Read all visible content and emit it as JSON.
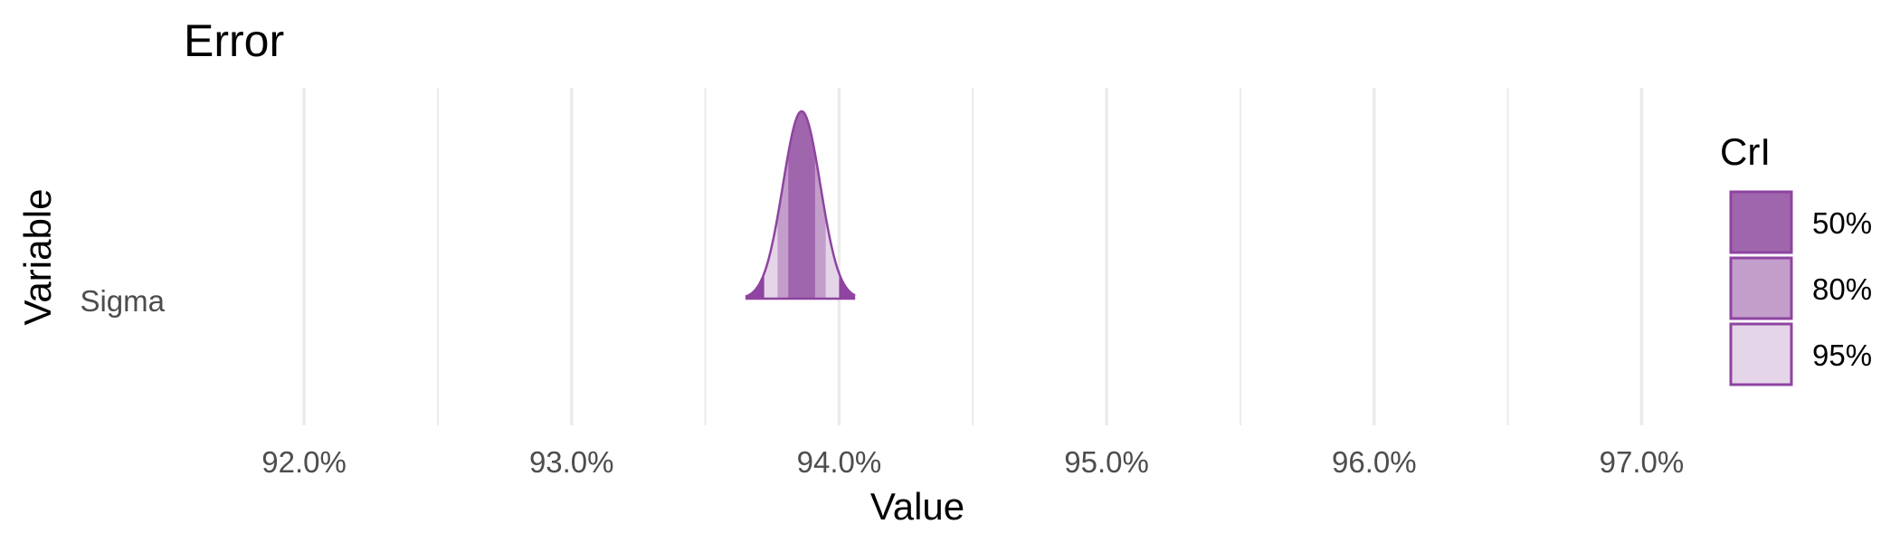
{
  "chart_data": {
    "type": "area",
    "title": "Error",
    "xlabel": "Value",
    "ylabel": "Variable",
    "categories": [
      "Sigma"
    ],
    "xlim": [
      91.55,
      97.8
    ],
    "x_ticks": [
      "92.0%",
      "93.0%",
      "94.0%",
      "95.0%",
      "96.0%",
      "97.0%"
    ],
    "x_tick_values": [
      92.0,
      93.0,
      94.0,
      95.0,
      96.0,
      97.0
    ],
    "x_minor_values": [
      92.5,
      93.5,
      94.5,
      95.5,
      96.5
    ],
    "grid": "vertical",
    "distribution": {
      "variable": "Sigma",
      "mode": 93.86,
      "sd": 0.07,
      "min": 93.65,
      "max": 94.06,
      "intervals": [
        {
          "label": "50%",
          "low": 93.81,
          "high": 93.91
        },
        {
          "label": "80%",
          "low": 93.77,
          "high": 93.95
        },
        {
          "label": "95%",
          "low": 93.72,
          "high": 94.0
        }
      ]
    },
    "legend": {
      "title": "CrI",
      "position": "right",
      "items": [
        {
          "label": "50%",
          "color": "#a066ad"
        },
        {
          "label": "80%",
          "color": "#c39ecb"
        },
        {
          "label": "95%",
          "color": "#e5d5e9"
        }
      ]
    },
    "colors": {
      "outline": "#8e44a0",
      "tail": "#8e44a0",
      "grid": "#ebebeb"
    }
  }
}
